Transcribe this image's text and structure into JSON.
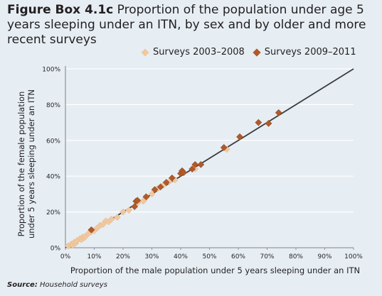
{
  "title": {
    "prefix": "Figure Box 4.1c",
    "text": " Proportion of the population under age 5 years sleeping under an ITN, by sex and by older and more recent surveys"
  },
  "source": {
    "label": "Source:",
    "text": " Household surveys"
  },
  "colors": {
    "background": "#e6eef4",
    "older": "#f0c8a0",
    "recent": "#b05a2a",
    "line": "#3c3c3c",
    "grid": "#ffffff"
  },
  "chart_data": {
    "type": "scatter",
    "title": "Proportion of the population under age 5 years sleeping under an ITN, by sex and by older and more recent surveys",
    "xlabel": "Proportion of the male population under 5 years sleeping under an ITN",
    "ylabel_lines": [
      "Proportion of the female population",
      "under 5 years sleeping under an ITN"
    ],
    "xlim": [
      0,
      100
    ],
    "ylim": [
      0,
      100
    ],
    "x_ticks": [
      "0%",
      "10%",
      "20%",
      "30%",
      "40%",
      "50%",
      "60%",
      "70%",
      "80%",
      "90%",
      "100%"
    ],
    "y_ticks": [
      "0%",
      "20%",
      "40%",
      "60%",
      "80%",
      "100%"
    ],
    "grid": "horizontal",
    "legend": "top-right",
    "reference_line": {
      "from": [
        0,
        0
      ],
      "to": [
        100,
        100
      ]
    },
    "series": [
      {
        "name": "Surveys 2003–2008",
        "marker": "diamond",
        "color": "#f0c8a0",
        "points": [
          [
            1,
            1
          ],
          [
            2,
            2
          ],
          [
            2.5,
            1.5
          ],
          [
            3,
            3
          ],
          [
            3.5,
            2.5
          ],
          [
            4,
            4
          ],
          [
            5,
            5
          ],
          [
            5.5,
            4.5
          ],
          [
            6,
            6
          ],
          [
            6.5,
            5.5
          ],
          [
            7,
            6.5
          ],
          [
            8,
            8
          ],
          [
            9,
            9
          ],
          [
            10,
            9.5
          ],
          [
            11,
            11
          ],
          [
            12,
            12.5
          ],
          [
            13,
            13
          ],
          [
            14,
            15
          ],
          [
            15,
            14.5
          ],
          [
            16,
            16
          ],
          [
            18,
            17
          ],
          [
            20,
            20
          ],
          [
            22,
            21
          ],
          [
            25,
            25
          ],
          [
            27,
            26
          ],
          [
            28,
            28
          ],
          [
            30,
            30
          ],
          [
            32,
            33
          ],
          [
            34,
            35
          ],
          [
            36,
            37
          ],
          [
            38,
            38
          ],
          [
            45,
            44
          ],
          [
            55,
            56
          ],
          [
            56,
            55
          ]
        ]
      },
      {
        "name": "Surveys 2009–2011",
        "marker": "diamond",
        "color": "#b05a2a",
        "points": [
          [
            9,
            10
          ],
          [
            24,
            23
          ],
          [
            24.5,
            26
          ],
          [
            25,
            26.5
          ],
          [
            28,
            28.5
          ],
          [
            31,
            32.5
          ],
          [
            33,
            34
          ],
          [
            35,
            36.5
          ],
          [
            37,
            39
          ],
          [
            40,
            41.5
          ],
          [
            40.5,
            43
          ],
          [
            41,
            42
          ],
          [
            44,
            44
          ],
          [
            45,
            46.5
          ],
          [
            47,
            46.5
          ],
          [
            55,
            56
          ],
          [
            60.5,
            62
          ],
          [
            67,
            70
          ],
          [
            70.5,
            69.5
          ],
          [
            74,
            75.5
          ]
        ]
      }
    ]
  }
}
